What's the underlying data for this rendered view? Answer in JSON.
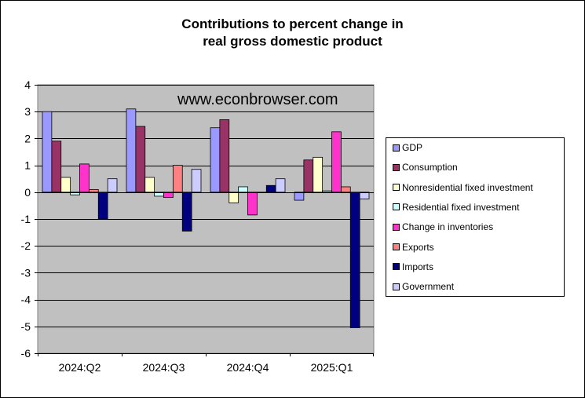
{
  "chart_data": {
    "type": "bar",
    "title_line1": "Contributions to percent change in",
    "title_line2": "real gross domestic product",
    "watermark": "www.econbrowser.com",
    "categories": [
      "2024:Q2",
      "2024:Q3",
      "2024:Q4",
      "2025:Q1"
    ],
    "ylim": [
      -6,
      4
    ],
    "yticks": [
      "4",
      "3",
      "2",
      "1",
      "0",
      "-1",
      "-2",
      "-3",
      "-4",
      "-5",
      "-6"
    ],
    "grid": true,
    "legend_position": "right",
    "plot_background": "#c0c0c0",
    "series": [
      {
        "name": "GDP",
        "color": "#9999ff",
        "values": [
          3.0,
          3.1,
          2.4,
          -0.3
        ]
      },
      {
        "name": "Consumption",
        "color": "#993366",
        "values": [
          1.9,
          2.45,
          2.7,
          1.2
        ]
      },
      {
        "name": "Nonresidential fixed investment",
        "color": "#ffffcc",
        "values": [
          0.55,
          0.55,
          -0.4,
          1.3
        ]
      },
      {
        "name": "Residential fixed investment",
        "color": "#ccffff",
        "values": [
          -0.1,
          -0.15,
          0.2,
          0.05
        ]
      },
      {
        "name": "Change in inventories",
        "color": "#ff33cc",
        "values": [
          1.05,
          -0.2,
          -0.85,
          2.25
        ]
      },
      {
        "name": "Exports",
        "color": "#ff8080",
        "values": [
          0.1,
          1.0,
          0.0,
          0.2
        ]
      },
      {
        "name": "Imports",
        "color": "#000080",
        "values": [
          -1.0,
          -1.45,
          0.25,
          -5.05
        ]
      },
      {
        "name": "Government",
        "color": "#ccccff",
        "values": [
          0.5,
          0.85,
          0.5,
          -0.25
        ]
      }
    ]
  }
}
